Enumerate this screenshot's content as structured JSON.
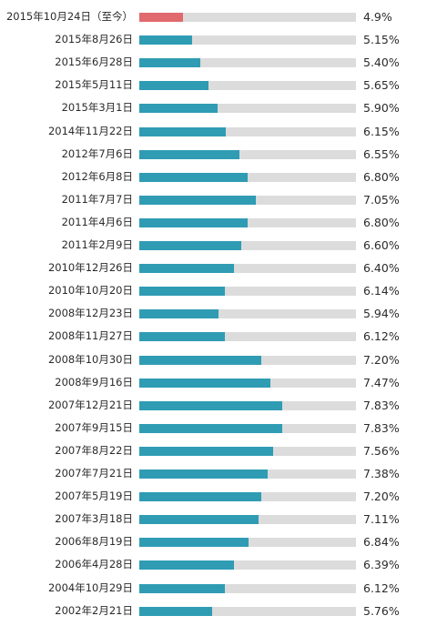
{
  "chart_data": {
    "type": "bar",
    "orientation": "horizontal",
    "categories": [
      "2015年10月24日（至今）",
      "2015年8月26日",
      "2015年6月28日",
      "2015年5月11日",
      "2015年3月1日",
      "2014年11月22日",
      "2012年7月6日",
      "2012年6月8日",
      "2011年7月7日",
      "2011年4月6日",
      "2011年2月9日",
      "2010年12月26日",
      "2010年10月20日",
      "2008年12月23日",
      "2008年11月27日",
      "2008年10月30日",
      "2008年9月16日",
      "2007年12月21日",
      "2007年9月15日",
      "2007年8月22日",
      "2007年7月21日",
      "2007年5月19日",
      "2007年3月18日",
      "2006年8月19日",
      "2006年4月28日",
      "2004年10月29日",
      "2002年2月21日"
    ],
    "values": [
      4.9,
      5.15,
      5.4,
      5.65,
      5.9,
      6.15,
      6.55,
      6.8,
      7.05,
      6.8,
      6.6,
      6.4,
      6.14,
      5.94,
      6.12,
      7.2,
      7.47,
      7.83,
      7.83,
      7.56,
      7.38,
      7.2,
      7.11,
      6.84,
      6.39,
      6.12,
      5.76
    ],
    "value_labels": [
      "4.9%",
      "5.15%",
      "5.40%",
      "5.65%",
      "5.90%",
      "6.15%",
      "6.55%",
      "6.80%",
      "7.05%",
      "6.80%",
      "6.60%",
      "6.40%",
      "6.14%",
      "5.94%",
      "6.12%",
      "7.20%",
      "7.47%",
      "7.83%",
      "7.83%",
      "7.56%",
      "7.38%",
      "7.20%",
      "7.11%",
      "6.84%",
      "6.39%",
      "6.12%",
      "5.76%"
    ],
    "xlim": [
      3.6,
      10.0
    ],
    "grid": false,
    "colors": {
      "highlight": "#e06a6e",
      "bar": "#2f9cb4",
      "track": "#dcdcdc"
    },
    "highlight_index": 0
  }
}
